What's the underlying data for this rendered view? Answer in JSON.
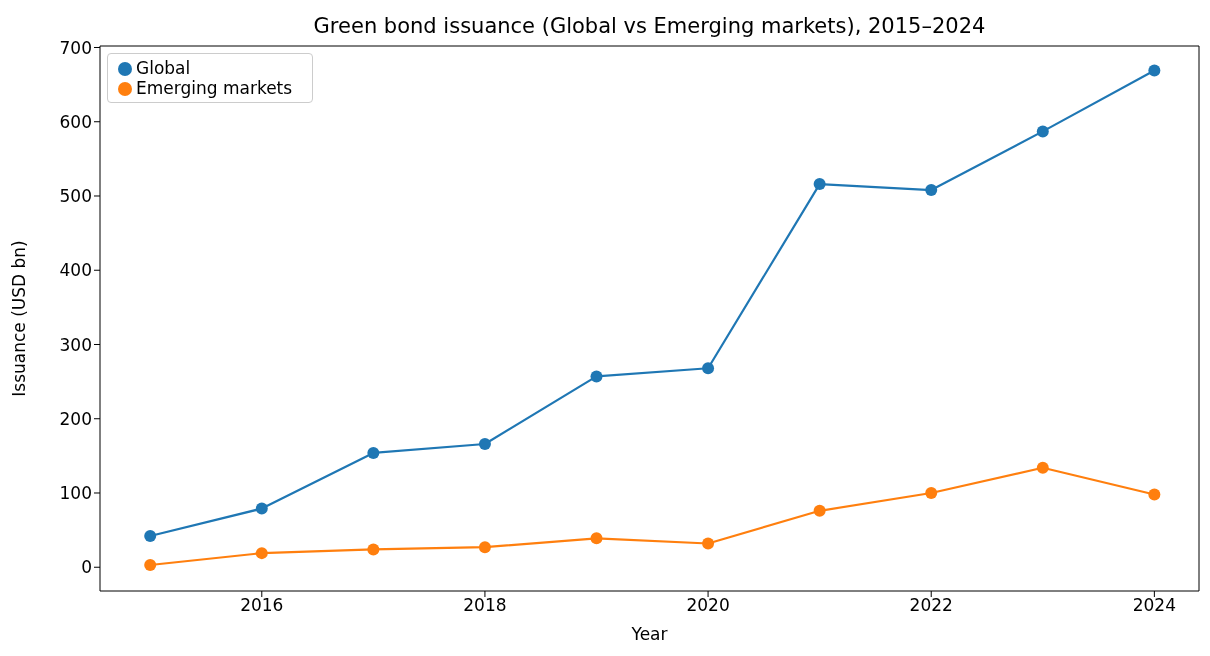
{
  "chart_data": {
    "type": "line",
    "title": "Green bond issuance (Global vs Emerging markets), 2015–2024",
    "xlabel": "Year",
    "ylabel": "Issuance (USD bn)",
    "x": [
      2015,
      2016,
      2017,
      2018,
      2019,
      2020,
      2021,
      2022,
      2023,
      2024
    ],
    "series": [
      {
        "name": "Global",
        "color": "#1f77b4",
        "values": [
          42,
          79,
          154,
          166,
          257,
          268,
          516,
          508,
          587,
          669
        ]
      },
      {
        "name": "Emerging markets",
        "color": "#ff7f0e",
        "values": [
          3,
          19,
          24,
          27,
          39,
          32,
          76,
          100,
          134,
          98
        ]
      }
    ],
    "xlim": [
      2014.55,
      2024.4
    ],
    "xticks": [
      2016,
      2018,
      2020,
      2022,
      2024
    ],
    "ylim": [
      -32,
      702
    ],
    "yticks": [
      0,
      100,
      200,
      300,
      400,
      500,
      600,
      700
    ],
    "grid": false,
    "legend": "top left",
    "marker": "circle",
    "line_style": "solid"
  }
}
